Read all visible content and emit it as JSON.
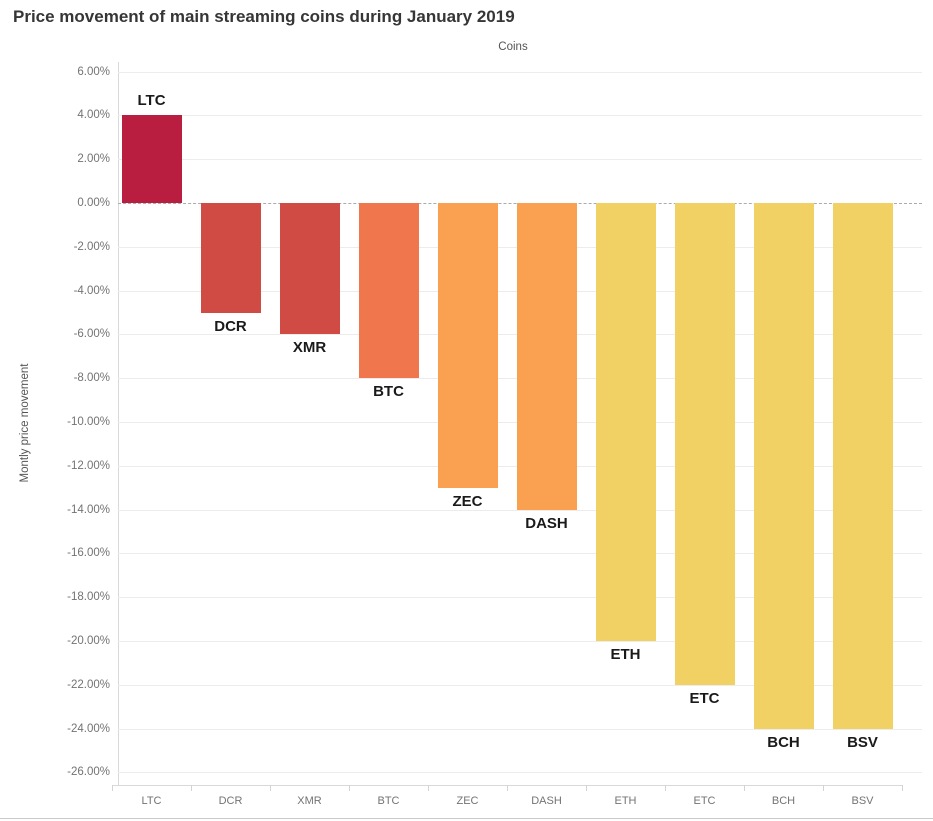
{
  "title": "Price movement of main streaming coins during January 2019",
  "chart_data": {
    "type": "bar",
    "title": "Price movement of main streaming coins during January 2019",
    "xlabel": "Coins",
    "ylabel": "Montly price movement",
    "categories": [
      "LTC",
      "DCR",
      "XMR",
      "BTC",
      "ZEC",
      "DASH",
      "ETH",
      "ETC",
      "BCH",
      "BSV"
    ],
    "values": [
      4,
      -5,
      -6,
      -8,
      -13,
      -14,
      -20,
      -22,
      -24,
      -24
    ],
    "bar_colors": [
      "#b91e41",
      "#d14b45",
      "#d14b45",
      "#f0764d",
      "#faa151",
      "#faa151",
      "#f2d164",
      "#f2d164",
      "#f2d164",
      "#f2d164"
    ],
    "y_ticks": [
      "6.00%",
      "4.00%",
      "2.00%",
      "0.00%",
      "-2.00%",
      "-4.00%",
      "-6.00%",
      "-8.00%",
      "-10.00%",
      "-12.00%",
      "-14.00%",
      "-16.00%",
      "-18.00%",
      "-20.00%",
      "-22.00%",
      "-24.00%",
      "-26.00%"
    ],
    "ylim": [
      -26,
      6
    ],
    "grid": true,
    "zero_line": "dashed",
    "legend": false,
    "bar_label_position": "outside-end",
    "colors": {
      "grid": "#ececec",
      "axis": "#d9d9d9",
      "zero_line": "#ababab",
      "title_text": "#363636",
      "axis_title_text": "#555555",
      "tick_text": "#737373",
      "bar_label_text": "#1a1a1a",
      "background": "#ffffff"
    }
  }
}
